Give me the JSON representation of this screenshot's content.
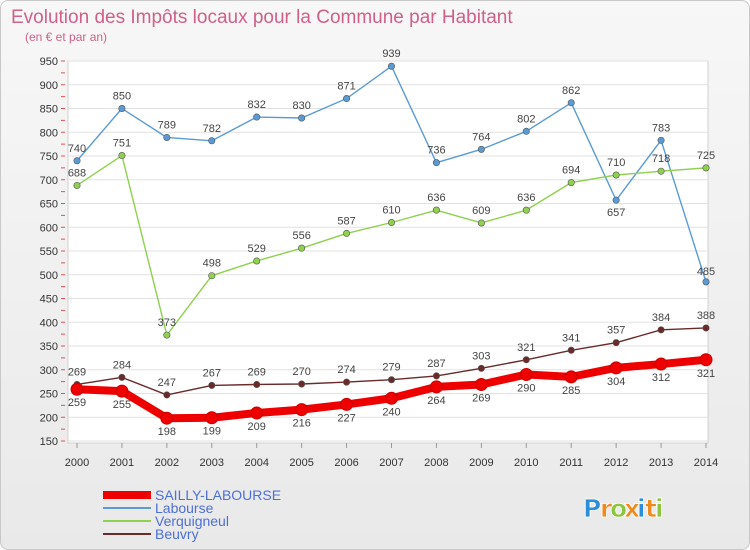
{
  "chart_data": {
    "type": "line",
    "title": "Evolution des Impôts locaux pour la Commune par Habitant",
    "subtitle": "(en € et par an)",
    "xlabel": "",
    "ylabel": "",
    "categories": [
      "2000",
      "2001",
      "2002",
      "2003",
      "2004",
      "2005",
      "2006",
      "2007",
      "2008",
      "2009",
      "2010",
      "2011",
      "2012",
      "2013",
      "2014"
    ],
    "ylim": [
      150,
      950
    ],
    "yticks": [
      150,
      200,
      250,
      300,
      350,
      400,
      450,
      500,
      550,
      600,
      650,
      700,
      750,
      800,
      850,
      900,
      950
    ],
    "grid": "horizontal",
    "legend_position": "bottom-left",
    "series": [
      {
        "name": "SAILLY-LABOURSE",
        "color": "#ee0000",
        "values": [
          259,
          255,
          198,
          199,
          209,
          216,
          227,
          240,
          264,
          269,
          290,
          285,
          304,
          312,
          321
        ]
      },
      {
        "name": "Labourse",
        "color": "#5b9bd5",
        "values": [
          740,
          850,
          789,
          782,
          832,
          830,
          871,
          939,
          736,
          764,
          802,
          862,
          657,
          783,
          485
        ]
      },
      {
        "name": "Verquigneul",
        "color": "#8fd04f",
        "values": [
          688,
          751,
          373,
          498,
          529,
          556,
          587,
          610,
          636,
          609,
          636,
          694,
          710,
          718,
          725
        ]
      },
      {
        "name": "Beuvry",
        "color": "#6b2a2a",
        "values": [
          269,
          284,
          247,
          267,
          269,
          270,
          274,
          279,
          287,
          303,
          321,
          341,
          357,
          384,
          388
        ]
      }
    ]
  },
  "branding": {
    "letters": [
      "P",
      "r",
      "o",
      "x",
      "i",
      "t",
      "i"
    ],
    "colors": [
      "#2a8fd8",
      "#f08a1e",
      "#8cc63e",
      "#f08a1e",
      "#2a8fd8",
      "#f08a1e",
      "#8cc63e"
    ]
  }
}
